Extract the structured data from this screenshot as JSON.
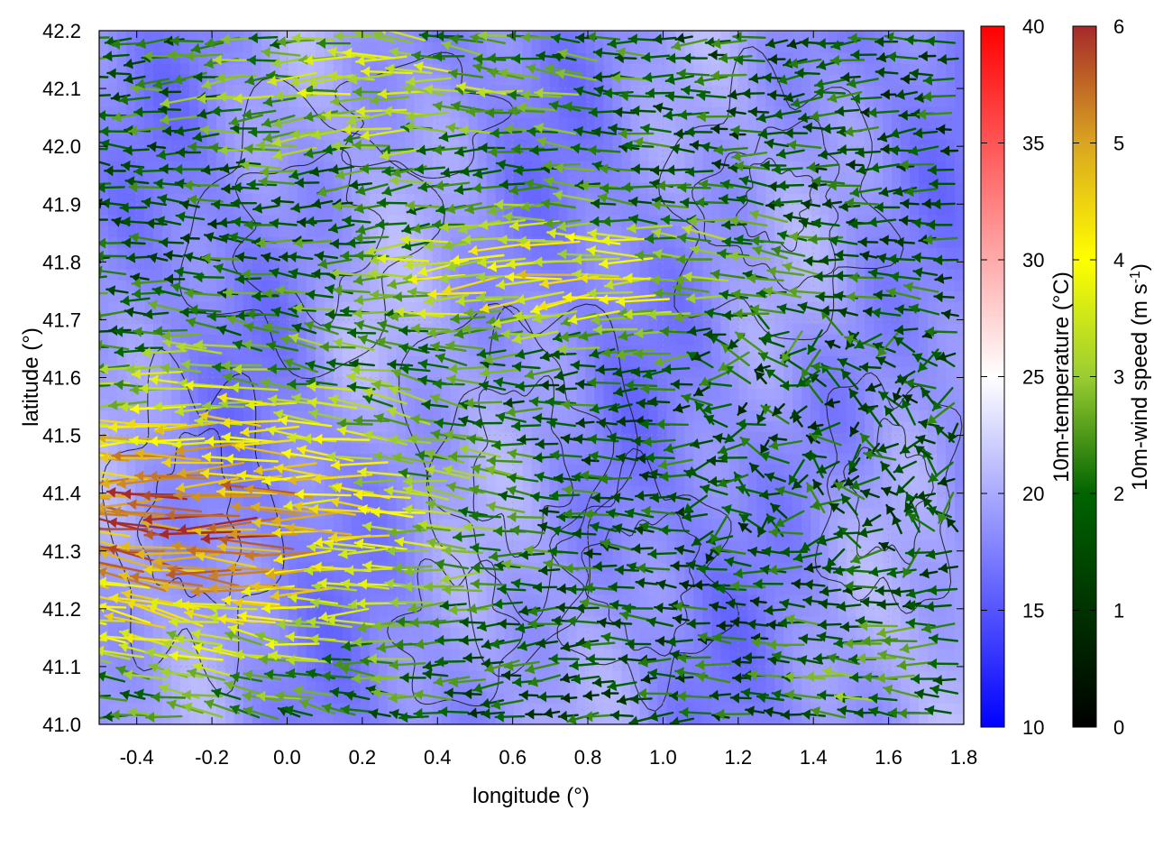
{
  "chart_data": {
    "type": "heatmap",
    "title": "",
    "xlabel": "longitude (°)",
    "ylabel": "latitude (°)",
    "xlim": [
      -0.5,
      1.8
    ],
    "ylim": [
      41.0,
      42.2
    ],
    "x_ticks": [
      "-0.4",
      "-0.2",
      "0.0",
      "0.2",
      "0.4",
      "0.6",
      "0.8",
      "1.0",
      "1.2",
      "1.4",
      "1.6",
      "1.8"
    ],
    "x_tick_values": [
      -0.4,
      -0.2,
      0.0,
      0.2,
      0.4,
      0.6,
      0.8,
      1.0,
      1.2,
      1.4,
      1.6,
      1.8
    ],
    "y_ticks": [
      "41.0",
      "41.1",
      "41.2",
      "41.3",
      "41.4",
      "41.5",
      "41.6",
      "41.7",
      "41.8",
      "41.9",
      "42.0",
      "42.1",
      "42.2"
    ],
    "y_tick_values": [
      41.0,
      41.1,
      41.2,
      41.3,
      41.4,
      41.5,
      41.6,
      41.7,
      41.8,
      41.9,
      42.0,
      42.1,
      42.2
    ],
    "grid": true,
    "layers": [
      "temperature heatmap",
      "terrain contours",
      "wind vectors"
    ],
    "temperature_colorbar": {
      "label": "10m-temperature (°C)",
      "range": [
        10,
        40
      ],
      "ticks": [
        "10",
        "15",
        "20",
        "25",
        "30",
        "35",
        "40"
      ],
      "tick_values": [
        10,
        15,
        20,
        25,
        30,
        35,
        40
      ],
      "colors": [
        "#0000ff",
        "#ffffff",
        "#ff0000"
      ],
      "field_range_estimate": [
        16,
        22
      ]
    },
    "wind_colorbar": {
      "label": "10m-wind speed (m s",
      "label_sup": "-1",
      "label_end": ")",
      "range": [
        0,
        6
      ],
      "ticks": [
        "0",
        "1",
        "2",
        "3",
        "4",
        "5",
        "6"
      ],
      "tick_values": [
        0,
        1,
        2,
        3,
        4,
        5,
        6
      ],
      "colors": [
        "#000000",
        "#006400",
        "#9acd32",
        "#ffff00",
        "#daa520",
        "#a52a2a"
      ]
    },
    "wind_regions": [
      {
        "region": "west, lat 41.1–41.6",
        "direction": "westward",
        "speed_approx": 5.5
      },
      {
        "region": "center-north, lat 41.7–41.9",
        "direction": "westward",
        "speed_approx": 4.2
      },
      {
        "region": "east",
        "direction": "variable",
        "speed_approx": 1.5
      },
      {
        "region": "south-east, lat 41.0–41.2",
        "direction": "westward",
        "speed_approx": 2.5
      }
    ]
  }
}
